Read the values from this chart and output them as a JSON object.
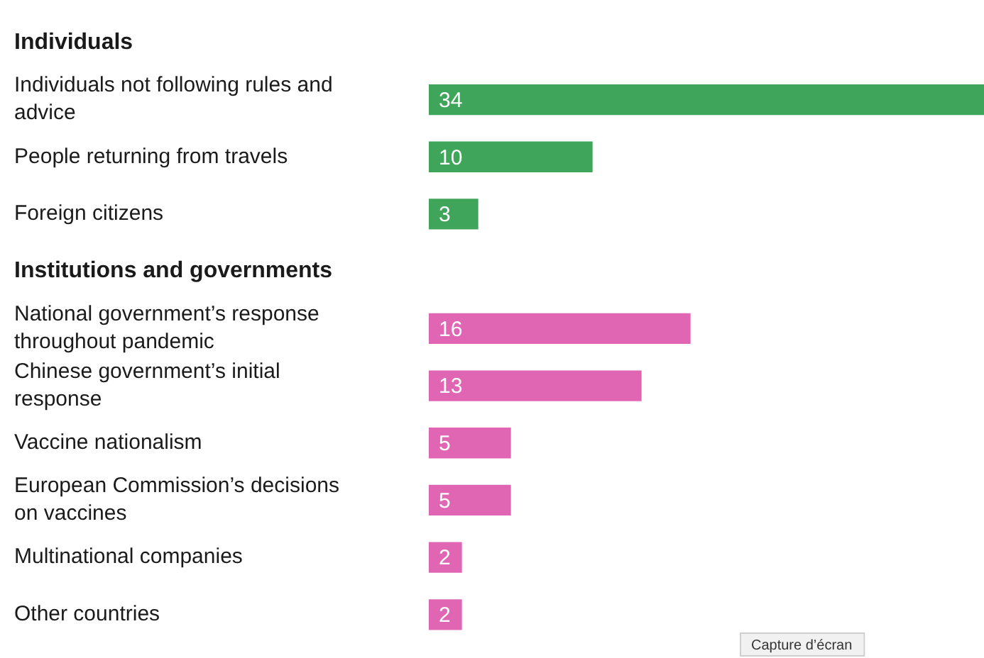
{
  "chart_data": {
    "type": "bar",
    "orientation": "horizontal",
    "data_labels": true,
    "categories": [
      "Individuals",
      "Individuals not following rules and advice",
      "People returning from travels",
      "Foreign citizens",
      "Institutions and governments",
      "National government’s response throughout pandemic",
      "Chinese government’s initial response",
      "Vaccine nationalism",
      "European Commission’s decisions on vaccines",
      "Multinational companies",
      "Other countries"
    ],
    "values": [
      null,
      34,
      10,
      3,
      null,
      16,
      13,
      5,
      5,
      2,
      2
    ],
    "colors": [
      "#3fa55a",
      "#3fa55a",
      "#3fa55a",
      "#3fa55a",
      "#e066b3",
      "#e066b3",
      "#e066b3",
      "#e066b3",
      "#e066b3",
      "#e066b3",
      "#e066b3"
    ],
    "annotations": [
      "Capture d’écran"
    ]
  }
}
